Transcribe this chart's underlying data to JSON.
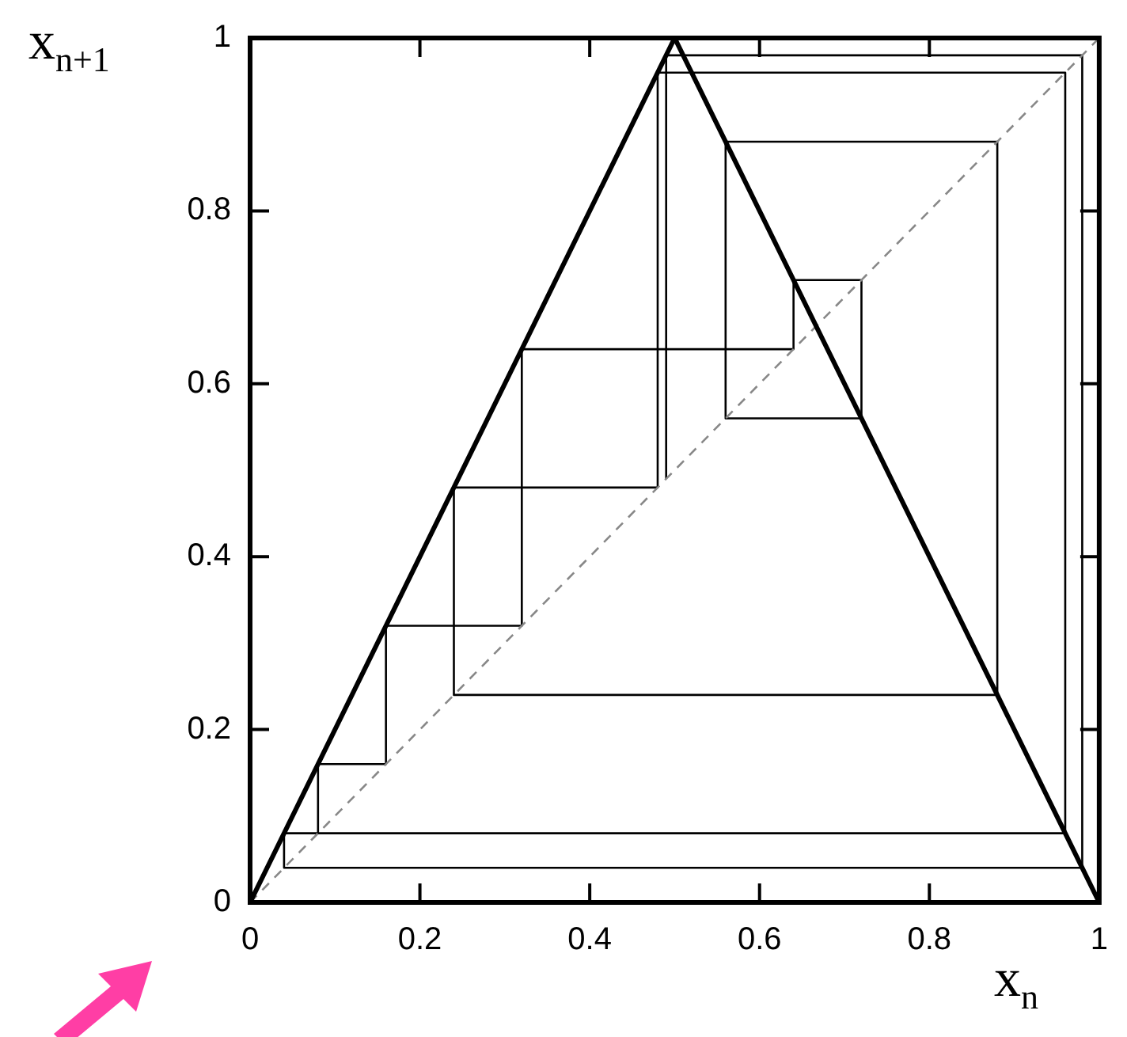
{
  "chart_data": {
    "type": "line",
    "xlabel": "x$_{n}$",
    "ylabel": "x$_{n+1}$",
    "xlim": [
      0,
      1
    ],
    "ylim": [
      0,
      1
    ],
    "xticks": [
      0,
      0.2,
      0.4,
      0.6,
      0.8,
      1
    ],
    "yticks": [
      0,
      0.2,
      0.4,
      0.6,
      0.8,
      1
    ],
    "grid": false,
    "legend": false,
    "marker": "none",
    "series": [
      {
        "color": "#000000",
        "x": [
          0,
          0.5,
          1
        ],
        "values": [
          0,
          1,
          0
        ]
      },
      {
        "color": "#888888",
        "line_style": "dashed",
        "x": [
          0,
          1
        ],
        "values": [
          0,
          1
        ]
      },
      {
        "color": "#000000",
        "x": [
          0.49,
          0.49,
          0.98,
          0.98,
          0.04,
          0.04,
          0.08,
          0.08,
          0.16,
          0.16,
          0.32,
          0.32,
          0.64,
          0.64,
          0.72,
          0.72,
          0.56,
          0.56,
          0.88,
          0.88,
          0.24,
          0.24,
          0.48,
          0.48,
          0.96,
          0.96,
          0.08
        ],
        "values": [
          0.49,
          0.98,
          0.98,
          0.04,
          0.04,
          0.08,
          0.08,
          0.16,
          0.16,
          0.32,
          0.32,
          0.64,
          0.64,
          0.72,
          0.72,
          0.56,
          0.56,
          0.88,
          0.88,
          0.24,
          0.24,
          0.48,
          0.48,
          0.96,
          0.96,
          0.08,
          0.08
        ]
      }
    ]
  }
}
